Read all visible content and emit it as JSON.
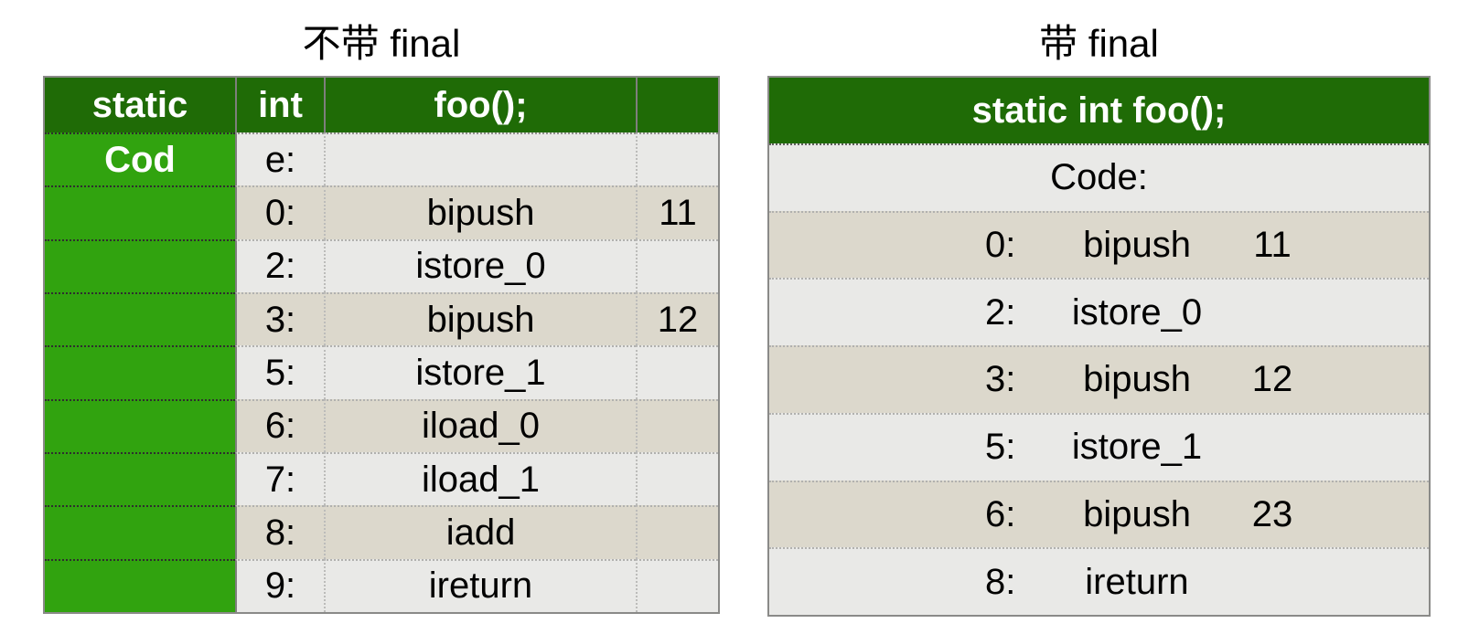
{
  "colors": {
    "header_green": "#1f6b06",
    "bright_green": "#31a30f",
    "row_tan": "#dcd8cc",
    "row_gray": "#e9e9e7",
    "border_gray": "#8a8a88",
    "header_text": "#ffffff",
    "body_text": "#000000"
  },
  "left_panel": {
    "title": "不带 final",
    "header": {
      "col1": "static",
      "col2": "int",
      "col3": "foo();",
      "col4": ""
    },
    "rows": [
      {
        "c1": "Cod",
        "c2": "e:",
        "c3": "",
        "c4": ""
      },
      {
        "c1": "",
        "c2": "0:",
        "c3": "bipush",
        "c4": "11"
      },
      {
        "c1": "",
        "c2": "2:",
        "c3": "istore_0",
        "c4": ""
      },
      {
        "c1": "",
        "c2": "3:",
        "c3": "bipush",
        "c4": "12"
      },
      {
        "c1": "",
        "c2": "5:",
        "c3": "istore_1",
        "c4": ""
      },
      {
        "c1": "",
        "c2": "6:",
        "c3": "iload_0",
        "c4": ""
      },
      {
        "c1": "",
        "c2": "7:",
        "c3": "iload_1",
        "c4": ""
      },
      {
        "c1": "",
        "c2": "8:",
        "c3": "iadd",
        "c4": ""
      },
      {
        "c1": "",
        "c2": "9:",
        "c3": "ireturn",
        "c4": ""
      }
    ]
  },
  "right_panel": {
    "title": "带 final",
    "header": "static int foo();",
    "code_label": "Code:",
    "rows": [
      {
        "index": "0:",
        "instruction": "bipush",
        "operand": "11"
      },
      {
        "index": "2:",
        "instruction": "istore_0",
        "operand": ""
      },
      {
        "index": "3:",
        "instruction": "bipush",
        "operand": "12"
      },
      {
        "index": "5:",
        "instruction": "istore_1",
        "operand": ""
      },
      {
        "index": "6:",
        "instruction": "bipush",
        "operand": "23"
      },
      {
        "index": "8:",
        "instruction": "ireturn",
        "operand": ""
      }
    ]
  }
}
